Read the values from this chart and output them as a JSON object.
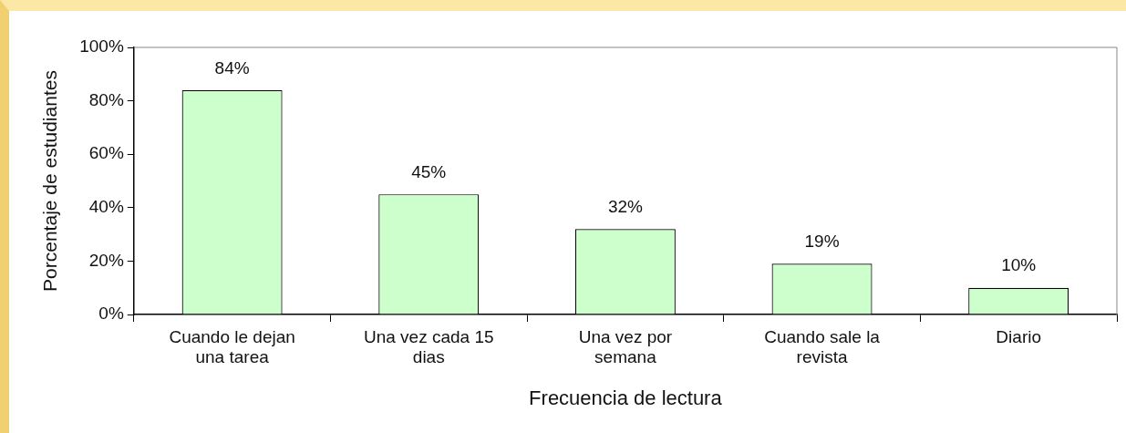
{
  "chart_data": {
    "type": "bar",
    "xlabel": "Frecuencia de lectura",
    "ylabel": "Porcentaje de estudiantes",
    "categories": [
      "Cuando le dejan una tarea",
      "Una vez cada 15 dias",
      "Una vez por semana",
      "Cuando sale la revista",
      "Diario"
    ],
    "values": [
      84,
      45,
      32,
      19,
      10
    ],
    "value_labels": [
      "84%",
      "45%",
      "32%",
      "19%",
      "10%"
    ],
    "color": "#ccffcc",
    "ylim": [
      0,
      100
    ],
    "yticks": [
      {
        "value": 0,
        "label": "0%"
      },
      {
        "value": 20,
        "label": "20%"
      },
      {
        "value": 40,
        "label": "40%"
      },
      {
        "value": 60,
        "label": "60%"
      },
      {
        "value": 80,
        "label": "80%"
      },
      {
        "value": 100,
        "label": "100%"
      }
    ],
    "grid": false,
    "legend": false
  }
}
